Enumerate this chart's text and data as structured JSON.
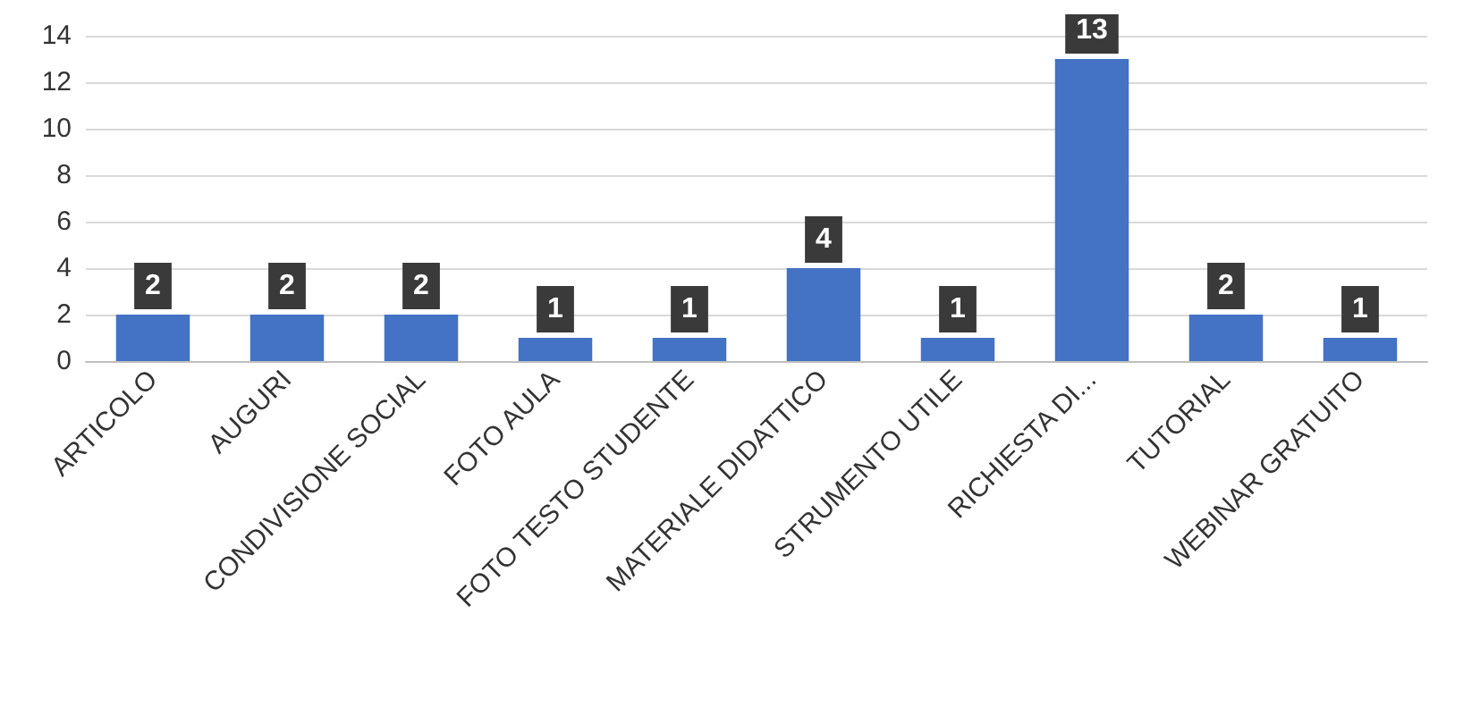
{
  "chart_data": {
    "type": "bar",
    "categories": [
      "ARTICOLO",
      "AUGURI",
      "CONDIVISIONE SOCIAL",
      "FOTO AULA",
      "FOTO TESTO STUDENTE",
      "MATERIALE DIDATTICO",
      "STRUMENTO UTILE",
      "RICHIESTA DI...",
      "TUTORIAL",
      "WEBINAR GRATUITO"
    ],
    "values": [
      2,
      2,
      2,
      1,
      1,
      4,
      1,
      13,
      2,
      1
    ],
    "color": "#4472c4",
    "ylim": [
      0,
      14
    ],
    "yticks": [
      0,
      2,
      4,
      6,
      8,
      10,
      12,
      14
    ],
    "grid": "y",
    "data_labels": true
  }
}
